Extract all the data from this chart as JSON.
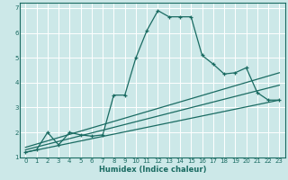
{
  "xlabel": "Humidex (Indice chaleur)",
  "xlim": [
    -0.5,
    23.5
  ],
  "ylim": [
    1,
    7.2
  ],
  "yticks": [
    1,
    2,
    3,
    4,
    5,
    6,
    7
  ],
  "xticks": [
    0,
    1,
    2,
    3,
    4,
    5,
    6,
    7,
    8,
    9,
    10,
    11,
    12,
    13,
    14,
    15,
    16,
    17,
    18,
    19,
    20,
    21,
    22,
    23
  ],
  "bg_color": "#cce8e8",
  "line_color": "#1a6b62",
  "grid_color": "#ffffff",
  "line1_x": [
    0,
    1,
    2,
    3,
    4,
    5,
    6,
    7,
    8,
    9,
    10,
    11,
    12,
    13,
    14,
    15,
    16,
    17,
    18,
    19,
    20,
    21,
    22,
    23
  ],
  "line1_y": [
    1.2,
    1.3,
    2.0,
    1.5,
    2.0,
    1.9,
    1.85,
    1.9,
    3.5,
    3.5,
    5.0,
    6.1,
    6.9,
    6.65,
    6.65,
    6.65,
    5.1,
    4.75,
    4.35,
    4.4,
    4.6,
    3.6,
    3.3,
    3.3
  ],
  "line2_x": [
    0,
    23
  ],
  "line2_y": [
    1.2,
    3.3
  ],
  "line3_x": [
    0,
    23
  ],
  "line3_y": [
    1.3,
    3.9
  ],
  "line4_x": [
    0,
    23
  ],
  "line4_y": [
    1.4,
    4.4
  ]
}
